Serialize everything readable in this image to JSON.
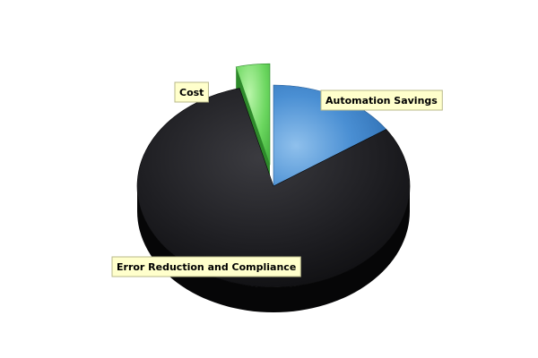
{
  "chart_data": {
    "type": "pie",
    "three_d": true,
    "legend": "none",
    "title": "",
    "slices": [
      {
        "label": "Automation Savings",
        "value": 15.5,
        "color": "#3a7fc4",
        "exploded": false
      },
      {
        "label": "Error Reduction and Compliance",
        "value": 80.5,
        "color": "#1c1c1f",
        "exploded": false
      },
      {
        "label": "Cost",
        "value": 4.0,
        "color": "#5fd35f",
        "exploded": true
      }
    ]
  }
}
